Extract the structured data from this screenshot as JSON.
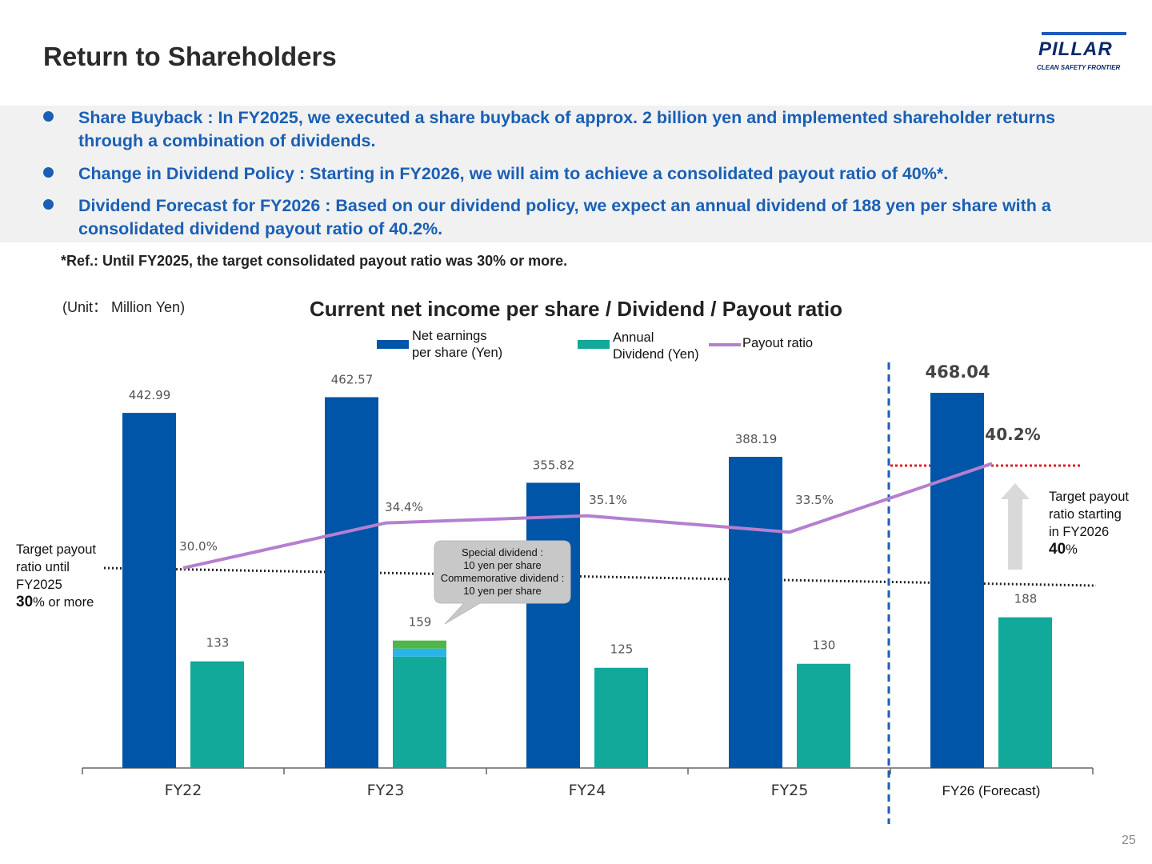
{
  "title": "Return to Shareholders",
  "logo": {
    "word": "PILLAR",
    "tagline": "CLEAN SAFETY FRONTIER"
  },
  "bullets": [
    "Share Buyback : In FY2025, we executed a share buyback of approx. 2 billion yen and implemented shareholder returns through a combination of dividends.",
    "Change in Dividend Policy : Starting in FY2026, we will aim to achieve a consolidated payout ratio of 40%*.",
    "Dividend Forecast for FY2026 : Based on our dividend policy, we expect an annual dividend of 188 yen per share with a consolidated dividend payout ratio of 40.2%."
  ],
  "note": "*Ref.: Until FY2025, the target consolidated payout ratio was 30% or more.",
  "unit": "(Unit： Million Yen)",
  "page_number": "25",
  "side_left": {
    "line1": "Target payout",
    "line2": "ratio until",
    "line3": "FY2025",
    "value": "30",
    "suffix": "% or more"
  },
  "side_right": {
    "line1": "Target payout",
    "line2": "ratio starting",
    "line3": "in FY2026",
    "value": "40",
    "suffix": "%"
  },
  "callout": [
    "Special dividend :",
    "10 yen per share",
    "Commemorative dividend :",
    "10 yen per share"
  ],
  "colors": {
    "eps": "#0055a8",
    "dividend": "#12a89a",
    "payout": "#b57fcf",
    "special": "#4cb84c",
    "commemorative": "#29b5e8",
    "accent_text": "#1a5fb4"
  },
  "chart_data": {
    "type": "bar",
    "title": "Current net income per share / Dividend / Payout ratio",
    "categories": [
      "FY22",
      "FY23",
      "FY24",
      "FY25",
      "FY26 (Forecast)"
    ],
    "series": [
      {
        "name": "Net earnings per share (Yen)",
        "type": "bar",
        "values": [
          442.99,
          462.57,
          355.82,
          388.19,
          468.04
        ],
        "labels": [
          "442.99",
          "462.57",
          "355.82",
          "388.19",
          "468.04"
        ]
      },
      {
        "name": "Annual Dividend (Yen)",
        "type": "bar",
        "values": [
          133,
          159,
          125,
          130,
          188
        ],
        "labels": [
          "133",
          "159",
          "125",
          "130",
          "188"
        ],
        "stacked_extras": {
          "FY23": {
            "special": 10,
            "commemorative": 10
          }
        }
      },
      {
        "name": "Payout ratio",
        "type": "line",
        "values": [
          30.0,
          34.4,
          35.1,
          33.5,
          40.2
        ],
        "labels": [
          "30.0%",
          "34.4%",
          "35.1%",
          "33.5%",
          "40.2%"
        ]
      }
    ],
    "legend": {
      "eps_line1": "Net earnings",
      "eps_line2": "per share (Yen)",
      "div_line1": "Annual",
      "div_line2": "Dividend (Yen)",
      "payout": "Payout ratio"
    },
    "reference_lines": [
      {
        "value": 30,
        "style": "dotted",
        "color": "#222222"
      },
      {
        "value": 40,
        "style": "dotted",
        "color": "#e02020"
      }
    ],
    "forecast_divider": "FY25|FY26",
    "legend_position": "top",
    "grid": false
  }
}
